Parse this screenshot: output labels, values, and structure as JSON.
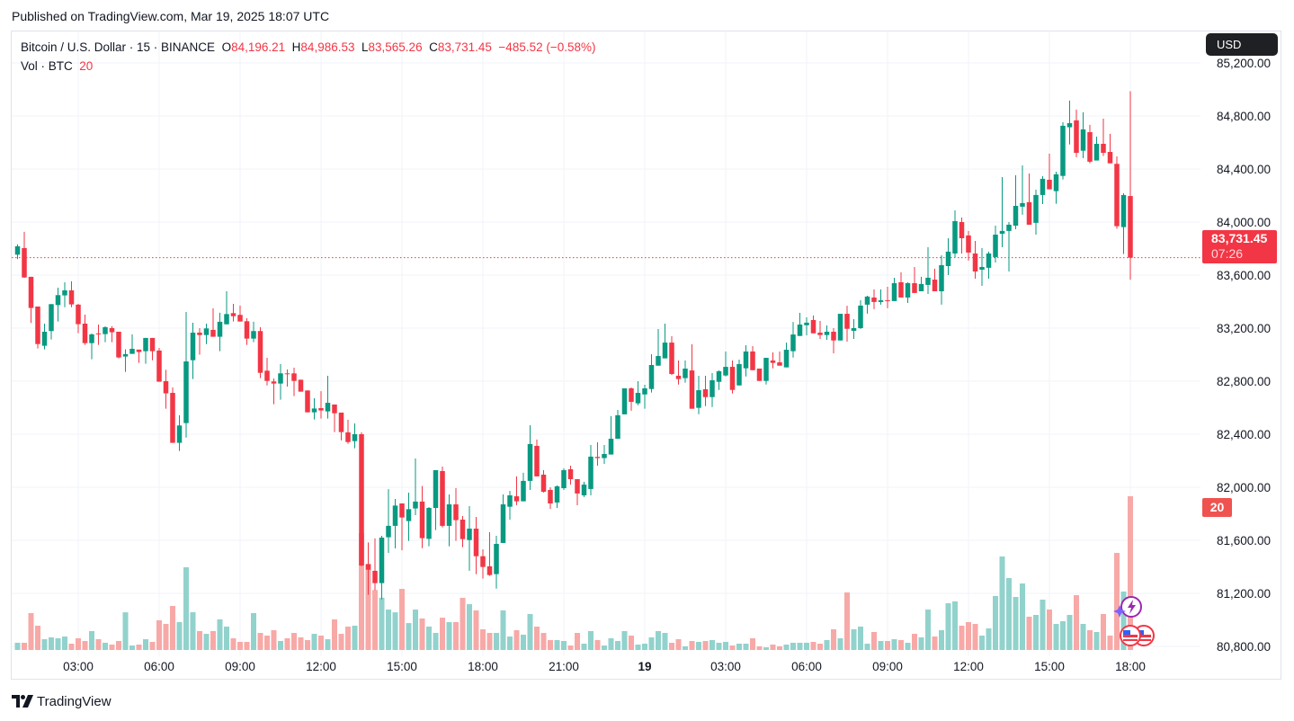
{
  "header": {
    "published": "Published on TradingView.com, Mar 19, 2025 18:07 UTC"
  },
  "legend": {
    "symbol": "Bitcoin / U.S. Dollar · 15 · BINANCE",
    "o_label": "O",
    "o": "84,196.21",
    "h_label": "H",
    "h": "84,986.53",
    "l_label": "L",
    "l": "83,565.26",
    "c_label": "C",
    "c": "83,731.45",
    "change": "−485.52 (−0.58%)",
    "vol_label": "Vol · BTC",
    "vol": "20"
  },
  "currency_button": "USD",
  "last_price": {
    "price": "83,731.45",
    "countdown": "07:26",
    "value": 83731.45
  },
  "volume_label": "20",
  "brand": "TradingView",
  "colors": {
    "up": "#089981",
    "down": "#f23645",
    "up_vol": "#92d2cc",
    "down_vol": "#f7a9a7",
    "grid": "#f0f3fa"
  },
  "chart_data": {
    "type": "candlestick",
    "symbol": "BTCUSD",
    "interval": "15",
    "price_ticks": [
      {
        "value": 85200,
        "label": "85,200.00"
      },
      {
        "value": 84800,
        "label": "84,800.00"
      },
      {
        "value": 84400,
        "label": "84,400.00"
      },
      {
        "value": 84000,
        "label": "84,000.00"
      },
      {
        "value": 83600,
        "label": "83,600.00"
      },
      {
        "value": 83200,
        "label": "83,200.00"
      },
      {
        "value": 82800,
        "label": "82,800.00"
      },
      {
        "value": 82400,
        "label": "82,400.00"
      },
      {
        "value": 82000,
        "label": "82,000.00"
      },
      {
        "value": 81600,
        "label": "81,600.00"
      },
      {
        "value": 81200,
        "label": "81,200.00"
      },
      {
        "value": 80800,
        "label": "80,800.00"
      }
    ],
    "time_ticks": [
      {
        "index": 9,
        "label": "03:00"
      },
      {
        "index": 21,
        "label": "06:00"
      },
      {
        "index": 33,
        "label": "09:00"
      },
      {
        "index": 45,
        "label": "12:00"
      },
      {
        "index": 57,
        "label": "15:00"
      },
      {
        "index": 69,
        "label": "18:00"
      },
      {
        "index": 81,
        "label": "21:00"
      },
      {
        "index": 93,
        "label": "19",
        "bold": true
      },
      {
        "index": 105,
        "label": "03:00"
      },
      {
        "index": 117,
        "label": "06:00"
      },
      {
        "index": 129,
        "label": "09:00"
      },
      {
        "index": 141,
        "label": "12:00"
      },
      {
        "index": 153,
        "label": "15:00"
      },
      {
        "index": 165,
        "label": "18:00"
      }
    ],
    "candles_ohlcv": [
      [
        83754,
        83831,
        83720,
        83817,
        0.94
      ],
      [
        83804,
        83926,
        83580,
        83582,
        0.94
      ],
      [
        83587,
        83587,
        83239,
        83352,
        4.8
      ],
      [
        83363,
        83363,
        83047,
        83080,
        3.16
      ],
      [
        83067,
        83234,
        83040,
        83173,
        1.4
      ],
      [
        83178,
        83381,
        83114,
        83381,
        1.64
      ],
      [
        83374,
        83505,
        83250,
        83449,
        1.52
      ],
      [
        83447,
        83546,
        83358,
        83485,
        1.75
      ],
      [
        83485,
        83553,
        83358,
        83379,
        0.82
      ],
      [
        83377,
        83383,
        83162,
        83230,
        1.52
      ],
      [
        83234,
        83302,
        83074,
        83087,
        1.17
      ],
      [
        83087,
        83160,
        82965,
        83153,
        2.46
      ],
      [
        83160,
        83227,
        83074,
        83153,
        1.4
      ],
      [
        83155,
        83214,
        83094,
        83207,
        0.94
      ],
      [
        83200,
        83214,
        83094,
        83169,
        0.7
      ],
      [
        83173,
        83173,
        82972,
        82979,
        1.17
      ],
      [
        82986,
        83040,
        82870,
        83004,
        4.9
      ],
      [
        83006,
        83153,
        83006,
        83044,
        0.58
      ],
      [
        83038,
        83038,
        82938,
        83020,
        0.7
      ],
      [
        83026,
        83126,
        82931,
        83126,
        1.4
      ],
      [
        83126,
        83126,
        82958,
        83026,
        1.05
      ],
      [
        83031,
        83051,
        82796,
        82796,
        3.86
      ],
      [
        82800,
        82886,
        82592,
        82708,
        3.39
      ],
      [
        82712,
        82753,
        82335,
        82335,
        5.73
      ],
      [
        82335,
        82543,
        82274,
        82466,
        3.63
      ],
      [
        82484,
        83322,
        82375,
        82949,
        10.76
      ],
      [
        82958,
        83241,
        82816,
        83166,
        4.91
      ],
      [
        83166,
        83200,
        83000,
        83148,
        2.46
      ],
      [
        83148,
        83234,
        83080,
        83198,
        2.1
      ],
      [
        83187,
        83350,
        83135,
        83135,
        2.46
      ],
      [
        83135,
        83316,
        83026,
        83248,
        3.98
      ],
      [
        83229,
        83478,
        83229,
        83306,
        3.04
      ],
      [
        83313,
        83383,
        83250,
        83290,
        1.52
      ],
      [
        83300,
        83370,
        83250,
        83250,
        1.05
      ],
      [
        83252,
        83275,
        83074,
        83121,
        1.05
      ],
      [
        83121,
        83248,
        83094,
        83178,
        4.8
      ],
      [
        83178,
        83207,
        82823,
        82863,
        2.22
      ],
      [
        82879,
        82976,
        82768,
        82802,
        1.87
      ],
      [
        82798,
        82820,
        82626,
        82782,
        2.57
      ],
      [
        82782,
        82929,
        82660,
        82859,
        1.17
      ],
      [
        82859,
        82888,
        82759,
        82857,
        1.52
      ],
      [
        82859,
        82902,
        82687,
        82802,
        2.22
      ],
      [
        82811,
        82811,
        82721,
        82721,
        1.64
      ],
      [
        82730,
        82730,
        82565,
        82565,
        1.29
      ],
      [
        82565,
        82671,
        82511,
        82594,
        2.1
      ],
      [
        82597,
        82725,
        82518,
        82579,
        1.87
      ],
      [
        82572,
        82841,
        82518,
        82637,
        1.4
      ],
      [
        82624,
        82624,
        82416,
        82558,
        3.98
      ],
      [
        82563,
        82563,
        82353,
        82416,
        2.1
      ],
      [
        82414,
        82509,
        82328,
        82341,
        3.04
      ],
      [
        82348,
        82481,
        82294,
        82400,
        3.16
      ],
      [
        82400,
        82414,
        81403,
        81410,
        15.2
      ],
      [
        81421,
        81584,
        81189,
        81378,
        11.1
      ],
      [
        81370,
        81614,
        81223,
        81277,
        7.8
      ],
      [
        81277,
        81634,
        81155,
        81620,
        6.8
      ],
      [
        81623,
        81986,
        81505,
        81709,
        5.26
      ],
      [
        81709,
        81912,
        81539,
        81862,
        4.9
      ],
      [
        81878,
        81878,
        81525,
        81772,
        7.95
      ],
      [
        81745,
        81959,
        81595,
        81835,
        3.5
      ],
      [
        81840,
        82217,
        81790,
        81892,
        5.26
      ],
      [
        81892,
        82009,
        81541,
        81616,
        4.1
      ],
      [
        81611,
        81851,
        81555,
        81844,
        3.04
      ],
      [
        81844,
        82129,
        81677,
        82129,
        2.22
      ],
      [
        82122,
        82156,
        81697,
        81709,
        4.2
      ],
      [
        81709,
        81946,
        81555,
        81871,
        3.63
      ],
      [
        81871,
        81993,
        81596,
        81752,
        3.63
      ],
      [
        81756,
        81783,
        81548,
        81609,
        6.78
      ],
      [
        81602,
        81858,
        81370,
        81688,
        5.96
      ],
      [
        81688,
        81776,
        81345,
        81480,
        5.15
      ],
      [
        81480,
        81532,
        81311,
        81399,
        2.69
      ],
      [
        81404,
        81661,
        81331,
        81338,
        2.22
      ],
      [
        81345,
        81634,
        81236,
        81573,
        2.22
      ],
      [
        81580,
        81946,
        81580,
        81871,
        5.15
      ],
      [
        81853,
        81973,
        81756,
        81939,
        1.75
      ],
      [
        81932,
        82082,
        81865,
        81894,
        2.57
      ],
      [
        81894,
        82109,
        81894,
        82048,
        1.99
      ],
      [
        82048,
        82468,
        81980,
        82326,
        4.68
      ],
      [
        82312,
        82360,
        82082,
        82082,
        3.04
      ],
      [
        82095,
        82129,
        81960,
        81966,
        2.22
      ],
      [
        81980,
        82000,
        81837,
        81878,
        1.29
      ],
      [
        81885,
        82014,
        81844,
        82007,
        1.29
      ],
      [
        81993,
        82143,
        81980,
        82129,
        1.17
      ],
      [
        82136,
        82163,
        82020,
        82061,
        0.58
      ],
      [
        82061,
        82061,
        81864,
        81953,
        2.22
      ],
      [
        81939,
        82041,
        81926,
        82020,
        0.82
      ],
      [
        81987,
        82319,
        81939,
        82231,
        2.46
      ],
      [
        82229,
        82339,
        82163,
        82220,
        1.29
      ],
      [
        82220,
        82319,
        82176,
        82251,
        0.58
      ],
      [
        82247,
        82536,
        82247,
        82366,
        1.52
      ],
      [
        82366,
        82583,
        82366,
        82543,
        1.17
      ],
      [
        82550,
        82746,
        82550,
        82746,
        2.46
      ],
      [
        82746,
        82753,
        82577,
        82644,
        1.87
      ],
      [
        82633,
        82800,
        82619,
        82712,
        0.7
      ],
      [
        82700,
        82773,
        82592,
        82746,
        0.82
      ],
      [
        82741,
        83003,
        82714,
        82922,
        1.64
      ],
      [
        82917,
        83193,
        82917,
        82990,
        2.46
      ],
      [
        82972,
        83234,
        82972,
        83091,
        2.22
      ],
      [
        83091,
        83139,
        82847,
        82854,
        0.94
      ],
      [
        82841,
        82956,
        82775,
        82816,
        1.4
      ],
      [
        82823,
        82956,
        82789,
        82895,
        0.47
      ],
      [
        82881,
        83078,
        82592,
        82592,
        1.17
      ],
      [
        82599,
        82841,
        82551,
        82732,
        1.05
      ],
      [
        82739,
        82841,
        82612,
        82680,
        1.17
      ],
      [
        82680,
        82861,
        82605,
        82807,
        1.29
      ],
      [
        82795,
        82881,
        82734,
        82875,
        0.94
      ],
      [
        82843,
        83024,
        82836,
        82908,
        1.05
      ],
      [
        82908,
        82956,
        82707,
        82734,
        0.58
      ],
      [
        82768,
        82963,
        82768,
        82929,
        0.82
      ],
      [
        82897,
        83071,
        82836,
        83024,
        0.82
      ],
      [
        83024,
        83064,
        82883,
        82883,
        1.52
      ],
      [
        82895,
        82895,
        82802,
        82802,
        0.47
      ],
      [
        82802,
        82976,
        82775,
        82976,
        0.35
      ],
      [
        82956,
        83017,
        82897,
        82938,
        0.7
      ],
      [
        82942,
        83024,
        82917,
        82917,
        0.47
      ],
      [
        82904,
        83091,
        82904,
        83037,
        0.7
      ],
      [
        83026,
        83247,
        82978,
        83152,
        0.94
      ],
      [
        83141,
        83315,
        83141,
        83227,
        0.94
      ],
      [
        83222,
        83281,
        83146,
        83241,
        0.94
      ],
      [
        83261,
        83295,
        83161,
        83161,
        1.05
      ],
      [
        83166,
        83254,
        83119,
        83148,
        0.82
      ],
      [
        83148,
        83220,
        83112,
        83173,
        1.29
      ],
      [
        83173,
        83200,
        83010,
        83107,
        2.69
      ],
      [
        83107,
        83308,
        83107,
        83308,
        1.52
      ],
      [
        83308,
        83369,
        83098,
        83195,
        7.49
      ],
      [
        83180,
        83268,
        83119,
        83200,
        2.69
      ],
      [
        83200,
        83410,
        83194,
        83370,
        3.04
      ],
      [
        83377,
        83444,
        83309,
        83438,
        0.82
      ],
      [
        83431,
        83492,
        83343,
        83397,
        2.34
      ],
      [
        83397,
        83492,
        83377,
        83410,
        1.17
      ],
      [
        83410,
        83512,
        83350,
        83406,
        1.17
      ],
      [
        83404,
        83580,
        83404,
        83539,
        1.4
      ],
      [
        83546,
        83621,
        83431,
        83431,
        1.29
      ],
      [
        83431,
        83546,
        83390,
        83539,
        0.94
      ],
      [
        83539,
        83661,
        83465,
        83465,
        2.1
      ],
      [
        83478,
        83587,
        83478,
        83533,
        1.64
      ],
      [
        83526,
        83810,
        83458,
        83580,
        5.26
      ],
      [
        83566,
        83648,
        83478,
        83478,
        1.75
      ],
      [
        83478,
        83749,
        83377,
        83675,
        2.57
      ],
      [
        83668,
        83878,
        83600,
        83777,
        6.08
      ],
      [
        83763,
        84088,
        83736,
        84007,
        6.32
      ],
      [
        84000,
        84034,
        83763,
        83878,
        3.16
      ],
      [
        83899,
        83933,
        83709,
        83770,
        3.63
      ],
      [
        83763,
        83858,
        83573,
        83627,
        3.39
      ],
      [
        83641,
        83804,
        83519,
        83661,
        1.87
      ],
      [
        83655,
        83777,
        83573,
        83763,
        2.81
      ],
      [
        83736,
        83973,
        83695,
        83905,
        7.02
      ],
      [
        83912,
        84339,
        83810,
        83933,
        12.16
      ],
      [
        83933,
        84000,
        83627,
        83980,
        9.36
      ],
      [
        83973,
        84353,
        83946,
        84122,
        6.9
      ],
      [
        84116,
        84427,
        84055,
        84143,
        8.65
      ],
      [
        84150,
        84366,
        83980,
        83980,
        4.33
      ],
      [
        83994,
        84244,
        83905,
        84204,
        4.56
      ],
      [
        84204,
        84346,
        84136,
        84326,
        6.55
      ],
      [
        84319,
        84516,
        84247,
        84247,
        5.26
      ],
      [
        84233,
        84380,
        84138,
        84360,
        3.39
      ],
      [
        84348,
        84753,
        84321,
        84726,
        3.74
      ],
      [
        84715,
        84916,
        84586,
        84746,
        4.56
      ],
      [
        84767,
        84848,
        84489,
        84522,
        7.13
      ],
      [
        84538,
        84828,
        84482,
        84699,
        3.39
      ],
      [
        84678,
        84733,
        84443,
        84455,
        2.57
      ],
      [
        84464,
        84644,
        84464,
        84590,
        2.34
      ],
      [
        84590,
        84780,
        84498,
        84522,
        4.68
      ],
      [
        84529,
        84665,
        84443,
        84443,
        1.87
      ],
      [
        84439,
        84495,
        83949,
        83969,
        12.63
      ],
      [
        83962,
        84217,
        83759,
        84204,
        7.6
      ],
      [
        84196.21,
        84986.53,
        83565.26,
        83731.45,
        20
      ]
    ]
  }
}
